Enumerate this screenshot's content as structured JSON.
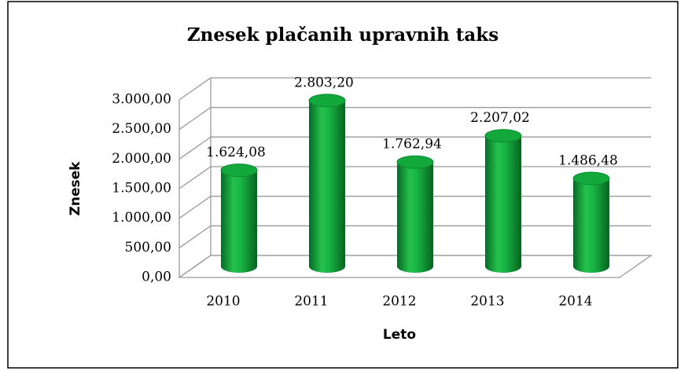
{
  "chart_data": {
    "type": "bar3d",
    "title": "Znesek plačanih upravnih taks",
    "ylabel": "Znesek",
    "xlabel": "Leto",
    "categories": [
      "2010",
      "2011",
      "2012",
      "2013",
      "2014"
    ],
    "values": [
      1624.08,
      2803.2,
      1762.94,
      2207.02,
      1486.48
    ],
    "value_labels": [
      "1.624,08",
      "2.803,20",
      "1.762,94",
      "2.207,02",
      "1.486,48"
    ],
    "color": "#12a83c",
    "ylim": [
      0,
      3000
    ],
    "yticks": [
      {
        "value": 0,
        "label": "0,00"
      },
      {
        "value": 500,
        "label": "500,00"
      },
      {
        "value": 1000,
        "label": "1.000,00"
      },
      {
        "value": 1500,
        "label": "1.500,00"
      },
      {
        "value": 2000,
        "label": "2.000,00"
      },
      {
        "value": 2500,
        "label": "2.500,00"
      },
      {
        "value": 3000,
        "label": "3.000,00"
      }
    ],
    "grid": true
  }
}
